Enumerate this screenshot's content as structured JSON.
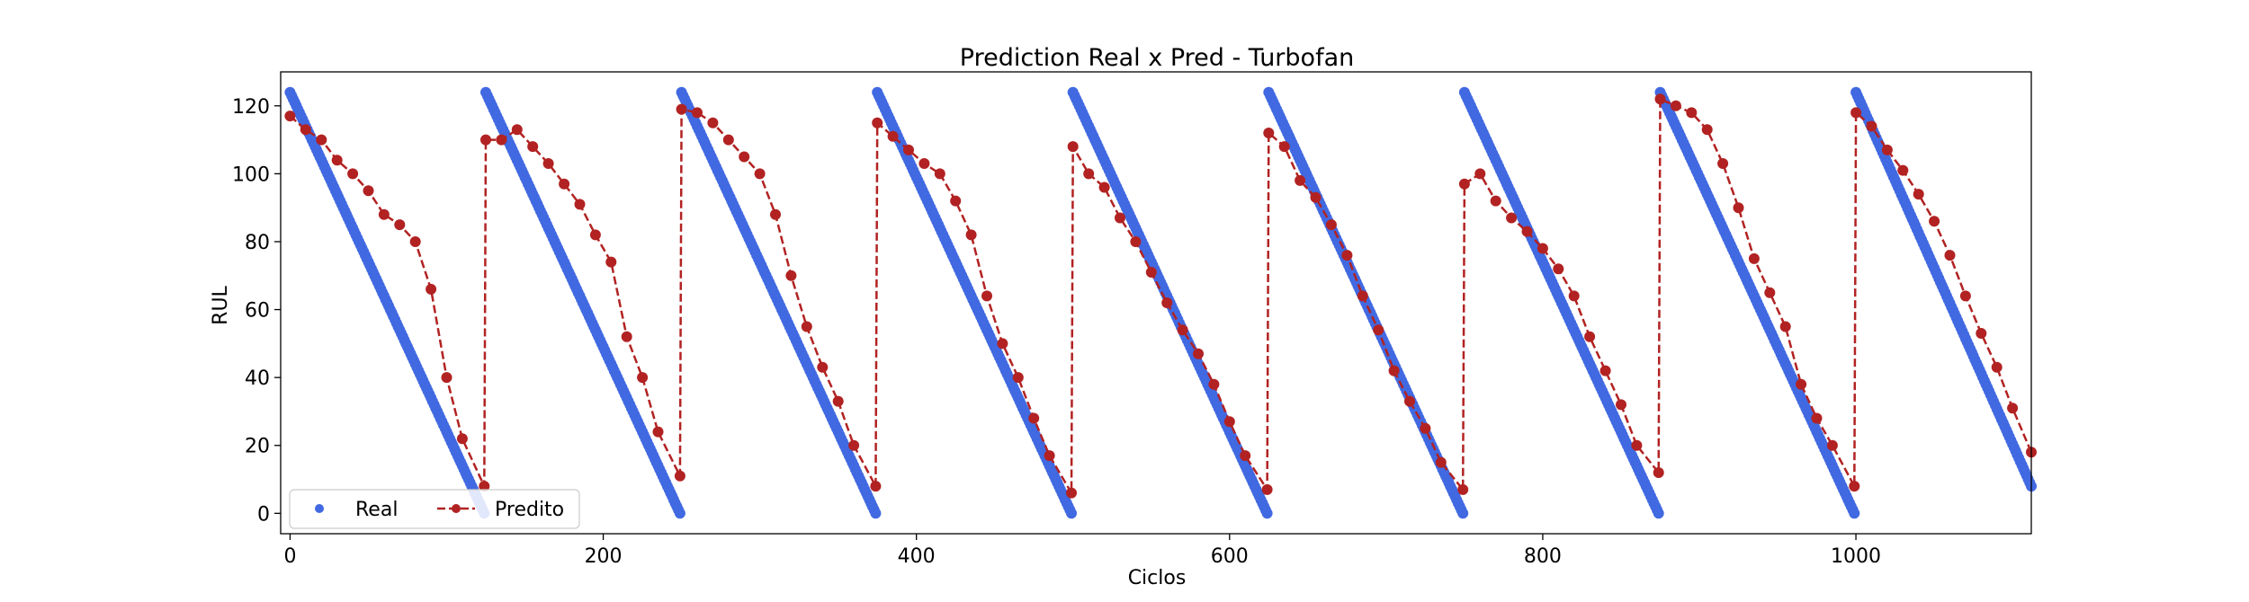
{
  "chart_data": {
    "type": "scatter",
    "title": "Prediction Real x Pred - Turbofan",
    "xlabel": "Ciclos",
    "ylabel": "RUL",
    "xlim": [
      -6,
      1112
    ],
    "ylim": [
      -6,
      130
    ],
    "xticks": [
      0,
      200,
      400,
      600,
      800,
      1000
    ],
    "yticks": [
      0,
      20,
      40,
      60,
      80,
      100,
      120
    ],
    "grid": false,
    "legend_position": "lower-left",
    "series": [
      {
        "name": "Real",
        "style": "points",
        "color": "#4169E1",
        "segments": [
          {
            "x_start": 0,
            "x_end": 124,
            "y_start": 124,
            "y_end": 0
          },
          {
            "x_start": 125,
            "x_end": 249,
            "y_start": 124,
            "y_end": 0
          },
          {
            "x_start": 250,
            "x_end": 374,
            "y_start": 124,
            "y_end": 0
          },
          {
            "x_start": 375,
            "x_end": 499,
            "y_start": 124,
            "y_end": 0
          },
          {
            "x_start": 500,
            "x_end": 624,
            "y_start": 124,
            "y_end": 0
          },
          {
            "x_start": 625,
            "x_end": 749,
            "y_start": 124,
            "y_end": 0
          },
          {
            "x_start": 750,
            "x_end": 874,
            "y_start": 124,
            "y_end": 0
          },
          {
            "x_start": 875,
            "x_end": 999,
            "y_start": 124,
            "y_end": 0
          },
          {
            "x_start": 1000,
            "x_end": 1112,
            "y_start": 124,
            "y_end": 8
          }
        ]
      },
      {
        "name": "Predito",
        "style": "dashed-line-markers",
        "color": "#B22222",
        "segments": [
          {
            "x": [
              0,
              10,
              20,
              30,
              40,
              50,
              60,
              70,
              80,
              90,
              100,
              110,
              124
            ],
            "y": [
              117,
              113,
              110,
              104,
              100,
              95,
              88,
              85,
              80,
              66,
              40,
              22,
              8
            ]
          },
          {
            "x": [
              125,
              135,
              145,
              155,
              165,
              175,
              185,
              195,
              205,
              215,
              225,
              235,
              249
            ],
            "y": [
              110,
              110,
              113,
              108,
              103,
              97,
              91,
              82,
              74,
              52,
              40,
              24,
              11
            ]
          },
          {
            "x": [
              250,
              260,
              270,
              280,
              290,
              300,
              310,
              320,
              330,
              340,
              350,
              360,
              374
            ],
            "y": [
              119,
              118,
              115,
              110,
              105,
              100,
              88,
              70,
              55,
              43,
              33,
              20,
              8
            ]
          },
          {
            "x": [
              375,
              385,
              395,
              405,
              415,
              425,
              435,
              445,
              455,
              465,
              475,
              485,
              499
            ],
            "y": [
              115,
              111,
              107,
              103,
              100,
              92,
              82,
              64,
              50,
              40,
              28,
              17,
              6
            ]
          },
          {
            "x": [
              500,
              510,
              520,
              530,
              540,
              550,
              560,
              570,
              580,
              590,
              600,
              610,
              624
            ],
            "y": [
              108,
              100,
              96,
              87,
              80,
              71,
              62,
              54,
              47,
              38,
              27,
              17,
              7
            ]
          },
          {
            "x": [
              625,
              635,
              645,
              655,
              665,
              675,
              685,
              695,
              705,
              715,
              725,
              735,
              749
            ],
            "y": [
              112,
              108,
              98,
              93,
              85,
              76,
              64,
              54,
              42,
              33,
              25,
              15,
              7
            ]
          },
          {
            "x": [
              750,
              760,
              770,
              780,
              790,
              800,
              810,
              820,
              830,
              840,
              850,
              860,
              874
            ],
            "y": [
              97,
              100,
              92,
              87,
              83,
              78,
              72,
              64,
              52,
              42,
              32,
              20,
              12
            ]
          },
          {
            "x": [
              875,
              885,
              895,
              905,
              915,
              925,
              935,
              945,
              955,
              965,
              975,
              985,
              999
            ],
            "y": [
              122,
              120,
              118,
              113,
              103,
              90,
              75,
              65,
              55,
              38,
              28,
              20,
              8
            ]
          },
          {
            "x": [
              1000,
              1010,
              1020,
              1030,
              1040,
              1050,
              1060,
              1070,
              1080,
              1090,
              1100,
              1112
            ],
            "y": [
              118,
              114,
              107,
              101,
              94,
              86,
              76,
              64,
              53,
              43,
              31,
              18
            ]
          }
        ]
      }
    ]
  }
}
